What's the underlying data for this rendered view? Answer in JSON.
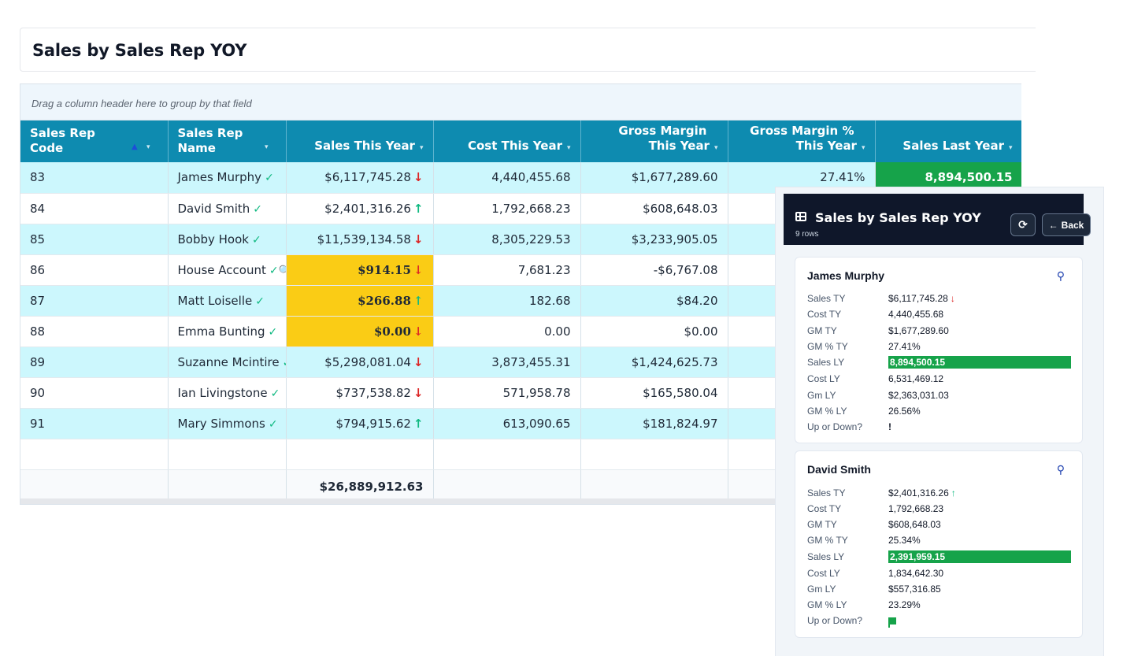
{
  "page_title": "Sales by Sales Rep YOY",
  "group_hint": "Drag a column header here to group by that field",
  "columns": [
    {
      "line1": "Sales Rep",
      "line2": "Code"
    },
    {
      "line1": "Sales Rep",
      "line2": "Name"
    },
    {
      "line1": "",
      "line2": "Sales This Year"
    },
    {
      "line1": "",
      "line2": "Cost This Year"
    },
    {
      "line1": "Gross Margin",
      "line2": "This Year"
    },
    {
      "line1": "Gross Margin %",
      "line2": "This Year"
    },
    {
      "line1": "",
      "line2": "Sales Last Year"
    }
  ],
  "rows": [
    {
      "code": "83",
      "name": "James Murphy",
      "sales_ty": "$6,117,745.28",
      "trend": "down",
      "cost_ty": "4,440,455.68",
      "gm_ty": "$1,677,289.60",
      "gm_pct_ty": "27.41%",
      "sales_ly": "8,894,500.15"
    },
    {
      "code": "84",
      "name": "David Smith",
      "sales_ty": "$2,401,316.26",
      "trend": "up",
      "cost_ty": "1,792,668.23",
      "gm_ty": "$608,648.03"
    },
    {
      "code": "85",
      "name": "Bobby Hook",
      "sales_ty": "$11,539,134.58",
      "trend": "down",
      "cost_ty": "8,305,229.53",
      "gm_ty": "$3,233,905.05"
    },
    {
      "code": "86",
      "name": "House Account",
      "sales_ty": "$914.15",
      "trend": "down",
      "cost_ty": "7,681.23",
      "gm_ty": "-$6,767.08"
    },
    {
      "code": "87",
      "name": "Matt Loiselle",
      "sales_ty": "$266.88",
      "trend": "up",
      "cost_ty": "182.68",
      "gm_ty": "$84.20"
    },
    {
      "code": "88",
      "name": "Emma Bunting",
      "sales_ty": "$0.00",
      "trend": "down",
      "cost_ty": "0.00",
      "gm_ty": "$0.00"
    },
    {
      "code": "89",
      "name": "Suzanne Mcintire",
      "sales_ty": "$5,298,081.04",
      "trend": "down",
      "cost_ty": "3,873,455.31",
      "gm_ty": "$1,424,625.73"
    },
    {
      "code": "90",
      "name": "Ian Livingstone",
      "sales_ty": "$737,538.82",
      "trend": "down",
      "cost_ty": "571,958.78",
      "gm_ty": "$165,580.04"
    },
    {
      "code": "91",
      "name": "Mary Simmons",
      "sales_ty": "$794,915.62",
      "trend": "up",
      "cost_ty": "613,090.65",
      "gm_ty": "$181,824.97"
    }
  ],
  "total_sales_ty": "$26,889,912.63",
  "side_panel": {
    "title": "Sales by Sales Rep YOY",
    "rows_label": "9 rows",
    "back_label": "Back",
    "cards": [
      {
        "name": "James Murphy",
        "fields": [
          {
            "k": "Sales TY",
            "v": "$6,117,745.28"
          },
          {
            "k": "Cost TY",
            "v": "4,440,455.68"
          },
          {
            "k": "GM TY",
            "v": "$1,677,289.60"
          },
          {
            "k": "GM % TY",
            "v": "27.41%"
          },
          {
            "k": "Sales LY",
            "v": "8,894,500.15"
          },
          {
            "k": "Cost LY",
            "v": "6,531,469.12"
          },
          {
            "k": "Gm LY",
            "v": "$2,363,031.03"
          },
          {
            "k": "GM % LY",
            "v": "26.56%"
          },
          {
            "k": "Up or Down?",
            "v": "!"
          }
        ]
      },
      {
        "name": "David Smith",
        "fields": [
          {
            "k": "Sales TY",
            "v": "$2,401,316.26"
          },
          {
            "k": "Cost TY",
            "v": "1,792,668.23"
          },
          {
            "k": "GM TY",
            "v": "$608,648.03"
          },
          {
            "k": "GM % TY",
            "v": "25.34%"
          },
          {
            "k": "Sales LY",
            "v": "2,391,959.15"
          },
          {
            "k": "Cost LY",
            "v": "1,834,642.30"
          },
          {
            "k": "Gm LY",
            "v": "$557,316.85"
          },
          {
            "k": "GM % LY",
            "v": "23.29%"
          },
          {
            "k": "Up or Down?",
            "v": ""
          }
        ]
      }
    ]
  },
  "colors": {
    "header_bg": "#0e8bb0",
    "alt_row": "#ccf7fd",
    "highlight_yellow": "#facc15",
    "highlight_green": "#16a34a",
    "down": "#dc2626",
    "up": "#10b981"
  }
}
